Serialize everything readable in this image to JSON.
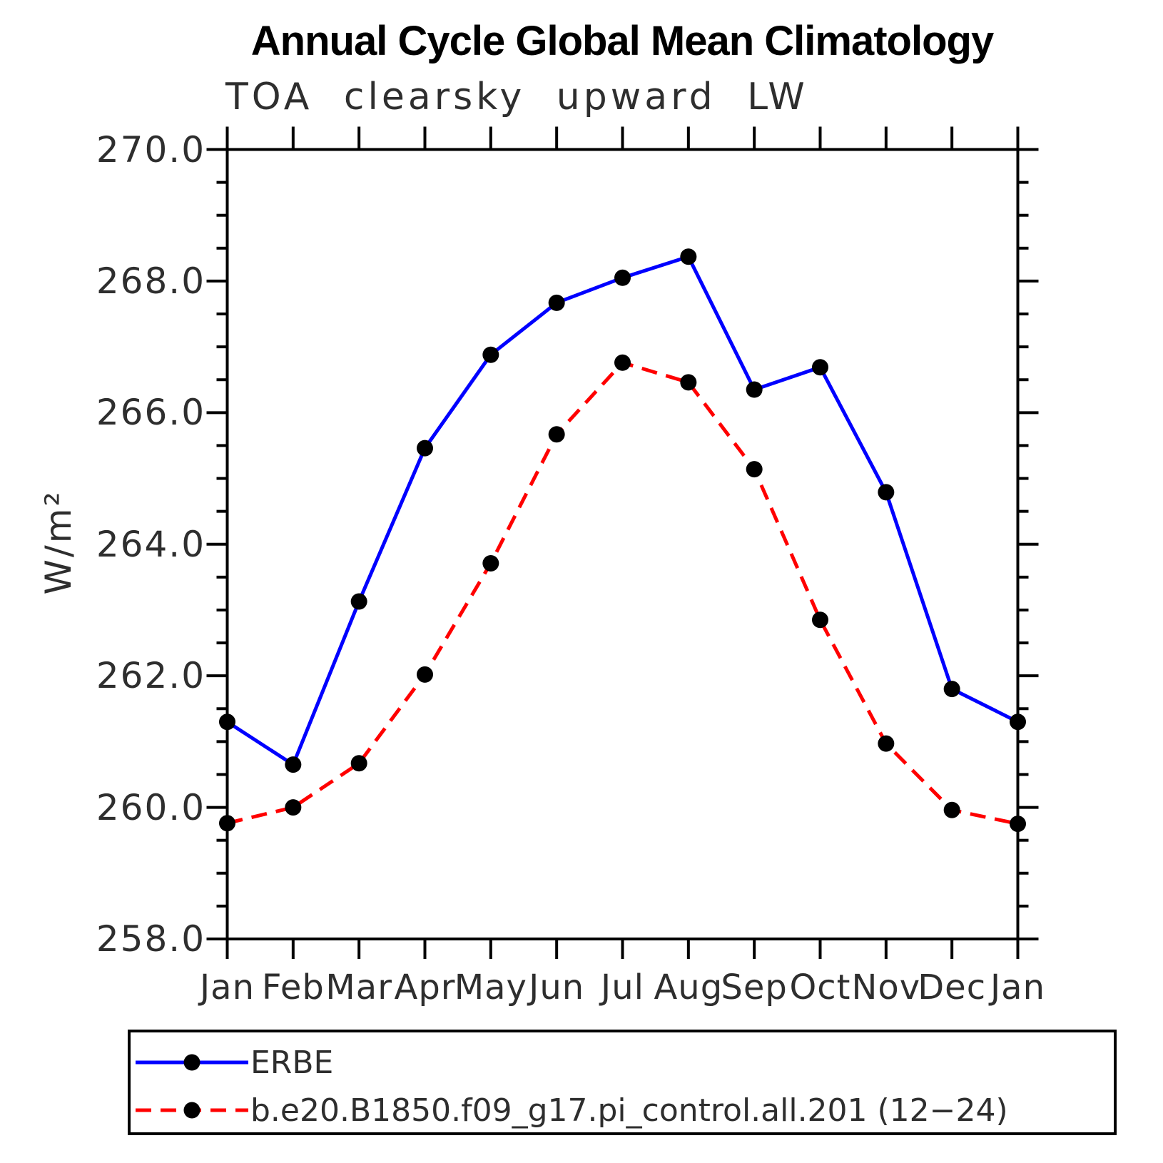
{
  "title": "Annual Cycle Global Mean Climatology",
  "subtitle": "TOA clearsky upward LW",
  "y_axis_title": "W/m²",
  "colors": {
    "erbe_line": "#0000ff",
    "model_line": "#ff0000",
    "marker": "#000000",
    "axis": "#000000"
  },
  "legend": {
    "items": [
      {
        "label": "ERBE",
        "color": "#0000ff",
        "style": "solid",
        "marker": "circle"
      },
      {
        "label": "b.e20.B1850.f09_g17.pi_control.all.201 (12−24)",
        "color": "#ff0000",
        "style": "dashed",
        "marker": "circle"
      }
    ]
  },
  "chart_data": {
    "type": "line",
    "title": "Annual Cycle Global Mean Climatology",
    "subtitle": "TOA clearsky upward LW",
    "ylabel": "W/m²",
    "xlabel": "",
    "categories": [
      "Jan",
      "Feb",
      "Mar",
      "Apr",
      "May",
      "Jun",
      "Jul",
      "Aug",
      "Sep",
      "Oct",
      "Nov",
      "Dec",
      "Jan"
    ],
    "ylim": [
      258.0,
      270.0
    ],
    "y_major_step": 2.0,
    "y_minor_step": 0.5,
    "y_tick_labels": [
      "270.0",
      "268.0",
      "266.0",
      "264.0",
      "262.0",
      "260.0",
      "258.0"
    ],
    "grid": false,
    "legend_position": "bottom",
    "series": [
      {
        "name": "ERBE",
        "color": "#0000ff",
        "line_style": "solid",
        "marker": "circle",
        "marker_color": "#000000",
        "values": [
          261.3,
          260.65,
          263.13,
          265.46,
          266.88,
          267.67,
          268.05,
          268.37,
          266.35,
          266.69,
          264.79,
          261.8,
          261.3
        ]
      },
      {
        "name": "b.e20.B1850.f09_g17.pi_control.all.201 (12−24)",
        "color": "#ff0000",
        "line_style": "dashed",
        "marker": "circle",
        "marker_color": "#000000",
        "values": [
          259.76,
          260.0,
          260.67,
          262.02,
          263.71,
          265.67,
          266.76,
          266.46,
          265.14,
          262.85,
          260.97,
          259.96,
          259.75
        ]
      }
    ]
  }
}
